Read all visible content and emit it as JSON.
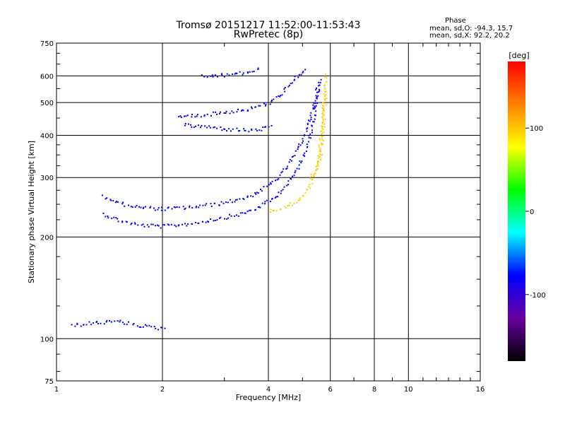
{
  "chart_data": {
    "type": "scatter",
    "title": "Tromsø 20151217 11:52:00-11:53:43",
    "subtitle": "RwPretec (8p)",
    "xlabel": "Frequency [MHz]",
    "ylabel": "Stationary phase Virtual Height [km]",
    "x_scale": "log",
    "y_scale": "log",
    "xlim": [
      1,
      16
    ],
    "ylim": [
      75,
      750
    ],
    "x_ticks": [
      1,
      2,
      4,
      6,
      8,
      10,
      16
    ],
    "x_tick_labels": [
      "1",
      "2",
      "4",
      "6",
      "8",
      "10",
      "16"
    ],
    "y_ticks": [
      75,
      100,
      200,
      300,
      400,
      500,
      600,
      750
    ],
    "y_tick_labels": [
      "75",
      "100",
      "200",
      "300",
      "400",
      "500",
      "600",
      "750"
    ],
    "grid": true,
    "phase_info": {
      "title": "Phase",
      "line_o": "mean, sd,O: -94.3, 15.7",
      "line_x": "mean, sd,X:  92.2, 20.2"
    },
    "colorbar": {
      "label": "[deg]",
      "range": [
        -180,
        180
      ],
      "ticks": [
        100,
        0,
        -100
      ],
      "tick_labels": [
        "100",
        "0",
        "-100"
      ],
      "colors": [
        "#ff0000",
        "#ff8000",
        "#ffff00",
        "#00ff00",
        "#00ffff",
        "#0000ff",
        "#6a00a0",
        "#000000"
      ]
    },
    "series": [
      {
        "mode": "O",
        "color": "#0000ff",
        "traces": [
          {
            "x": [
              1.35,
              1.5,
              1.7,
              2.0,
              2.4,
              2.9,
              3.4,
              3.8,
              4.2,
              4.6,
              5.0,
              5.3,
              5.5,
              5.6
            ],
            "y": [
              235,
              225,
              218,
              216,
              220,
              228,
              236,
              248,
              265,
              295,
              345,
              420,
              520,
              600
            ]
          },
          {
            "x": [
              1.35,
              1.5,
              1.7,
              2.0,
              2.4,
              2.9,
              3.4,
              3.8,
              4.2,
              4.6,
              5.0,
              5.3,
              5.5
            ],
            "y": [
              265,
              253,
              246,
              243,
              246,
              252,
              262,
              275,
              298,
              335,
              390,
              470,
              560
            ]
          },
          {
            "x": [
              2.2,
              2.6,
              3.0,
              3.5,
              4.0,
              4.4,
              4.8,
              5.1
            ],
            "y": [
              455,
              462,
              470,
              480,
              500,
              540,
              600,
              640
            ]
          },
          {
            "x": [
              2.3,
              2.7,
              3.1,
              3.6,
              4.1
            ],
            "y": [
              430,
              425,
              418,
              415,
              425
            ]
          },
          {
            "x": [
              2.6,
              3.0,
              3.4,
              3.8
            ],
            "y": [
              600,
              605,
              615,
              630
            ]
          },
          {
            "x": [
              1.1,
              1.3,
              1.5,
              1.7,
              1.9,
              2.05
            ],
            "y": [
              110,
              112,
              113,
              110,
              108,
              108
            ]
          }
        ]
      },
      {
        "mode": "X",
        "color": "#ffd000",
        "traces": [
          {
            "x": [
              4.0,
              4.4,
              4.8,
              5.2,
              5.5,
              5.7,
              5.8
            ],
            "y": [
              240,
              245,
              255,
              280,
              330,
              450,
              620
            ]
          },
          {
            "x": [
              5.2,
              5.4,
              5.6,
              5.7,
              5.8
            ],
            "y": [
              300,
              310,
              350,
              420,
              550
            ]
          }
        ]
      }
    ]
  }
}
